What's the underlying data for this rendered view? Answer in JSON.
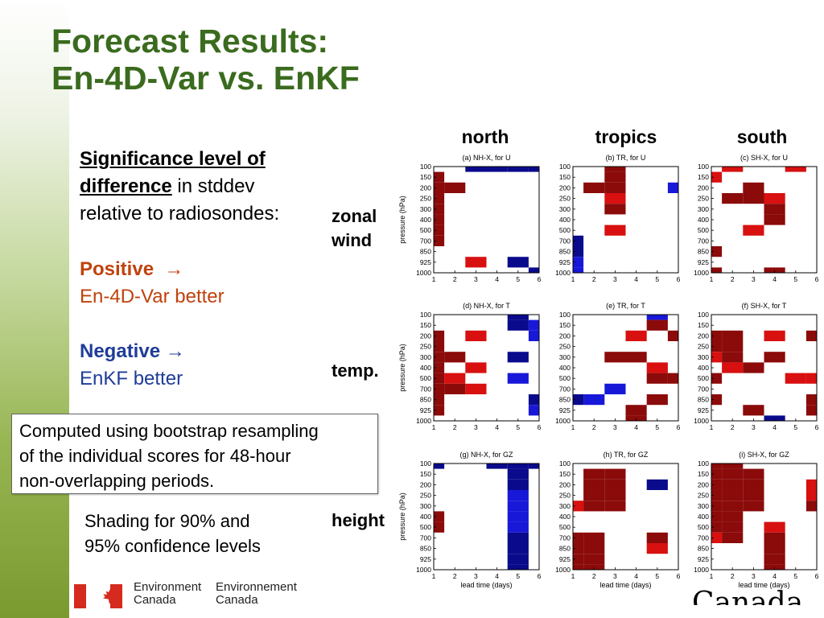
{
  "title": {
    "line1": "Forecast Results:",
    "line2": "En-4D-Var vs. EnKF"
  },
  "text": {
    "sig_heading_1": "Significance level of",
    "sig_heading_2": "difference",
    "sig_rest_1": " in stddev",
    "sig_rest_2": "relative to radiosondes:",
    "positive_label": "Positive",
    "positive_arrow": "→",
    "positive_desc": "En-4D-Var better",
    "negative_label": "Negative",
    "negative_arrow": "→",
    "negative_desc": "EnKF better",
    "note_line1": "Computed using bootstrap resampling",
    "note_line2": "of the individual scores for 48-hour",
    "note_line3": "non-overlapping periods.",
    "shading_line1": "Shading for 90% and",
    "shading_line2": "95% confidence levels"
  },
  "columns": [
    "north",
    "tropics",
    "south"
  ],
  "rows": [
    "zonal wind",
    "temp.",
    "height"
  ],
  "row_label_lines": [
    [
      "zonal",
      "wind"
    ],
    [
      "temp."
    ],
    [
      "height"
    ]
  ],
  "footer": {
    "dept_en_1": "Environment",
    "dept_en_2": "Canada",
    "dept_fr_1": "Environnement",
    "dept_fr_2": "Canada",
    "wordmark": "Canada"
  },
  "colors": {
    "pos95": "#8b0a0a",
    "pos90": "#d81010",
    "neg95": "#0a0a8c",
    "neg90": "#1818d8",
    "title": "#3a6b1e",
    "positive": "#c0420c",
    "negative": "#1f3c98"
  },
  "chart_data": {
    "type": "heatmap",
    "levels": [
      "100",
      "150",
      "200",
      "250",
      "300",
      "400",
      "500",
      "700",
      "850",
      "925",
      "1000"
    ],
    "lead_times": [
      "1",
      "2",
      "3",
      "4",
      "5",
      "6"
    ],
    "ylabel": "pressure (hPa)",
    "xlabel": "lead time (days)",
    "legend_codes": {
      "2": "positive 95%",
      "1": "positive 90%",
      "-1": "negative 90%",
      "-2": "negative 95%"
    },
    "panels": [
      {
        "title": "(a) NH-X, for U",
        "grid": [
          [
            0,
            0,
            -2,
            -2,
            -2,
            -2
          ],
          [
            2,
            0,
            0,
            0,
            0,
            0
          ],
          [
            2,
            2,
            0,
            0,
            0,
            0
          ],
          [
            2,
            0,
            0,
            0,
            0,
            0
          ],
          [
            2,
            0,
            0,
            0,
            0,
            0
          ],
          [
            2,
            0,
            0,
            0,
            0,
            0
          ],
          [
            2,
            0,
            0,
            0,
            0,
            0
          ],
          [
            2,
            0,
            0,
            0,
            0,
            0
          ],
          [
            0,
            0,
            0,
            0,
            0,
            0
          ],
          [
            0,
            0,
            1,
            0,
            -2,
            0
          ],
          [
            0,
            0,
            0,
            0,
            0,
            -2
          ]
        ]
      },
      {
        "title": "(b) TR, for U",
        "grid": [
          [
            0,
            0,
            2,
            0,
            0,
            0
          ],
          [
            0,
            0,
            2,
            0,
            0,
            0
          ],
          [
            0,
            2,
            2,
            0,
            0,
            -1
          ],
          [
            0,
            0,
            1,
            0,
            0,
            0
          ],
          [
            0,
            0,
            2,
            0,
            0,
            0
          ],
          [
            0,
            0,
            0,
            0,
            0,
            0
          ],
          [
            0,
            0,
            1,
            0,
            0,
            0
          ],
          [
            -2,
            0,
            0,
            0,
            0,
            0
          ],
          [
            -2,
            0,
            0,
            0,
            0,
            0
          ],
          [
            -1,
            0,
            0,
            0,
            0,
            0
          ],
          [
            -1,
            0,
            0,
            0,
            0,
            0
          ]
        ]
      },
      {
        "title": "(c) SH-X, for U",
        "grid": [
          [
            0,
            1,
            0,
            0,
            1,
            0
          ],
          [
            1,
            0,
            0,
            0,
            0,
            0
          ],
          [
            0,
            0,
            2,
            0,
            0,
            0
          ],
          [
            0,
            2,
            2,
            1,
            0,
            0
          ],
          [
            0,
            0,
            0,
            2,
            0,
            0
          ],
          [
            0,
            0,
            0,
            2,
            0,
            0
          ],
          [
            0,
            0,
            1,
            0,
            0,
            0
          ],
          [
            0,
            0,
            0,
            0,
            0,
            0
          ],
          [
            2,
            0,
            0,
            0,
            0,
            0
          ],
          [
            0,
            0,
            0,
            0,
            0,
            0
          ],
          [
            2,
            0,
            0,
            2,
            0,
            0
          ]
        ]
      },
      {
        "title": "(d) NH-X, for T",
        "grid": [
          [
            0,
            0,
            0,
            0,
            -2,
            0
          ],
          [
            0,
            0,
            0,
            0,
            -2,
            -1
          ],
          [
            2,
            0,
            1,
            0,
            0,
            -1
          ],
          [
            2,
            0,
            0,
            0,
            0,
            0
          ],
          [
            2,
            2,
            0,
            0,
            -2,
            0
          ],
          [
            2,
            0,
            1,
            0,
            0,
            0
          ],
          [
            2,
            1,
            0,
            0,
            -1,
            0
          ],
          [
            2,
            2,
            1,
            0,
            0,
            0
          ],
          [
            2,
            0,
            0,
            0,
            0,
            -2
          ],
          [
            2,
            0,
            0,
            0,
            0,
            -1
          ],
          [
            0,
            0,
            0,
            0,
            0,
            0
          ]
        ]
      },
      {
        "title": "(e) TR, for T",
        "grid": [
          [
            0,
            0,
            0,
            0,
            -1,
            0
          ],
          [
            0,
            0,
            0,
            0,
            2,
            0
          ],
          [
            0,
            0,
            0,
            1,
            0,
            2
          ],
          [
            0,
            0,
            0,
            0,
            0,
            0
          ],
          [
            0,
            0,
            2,
            2,
            0,
            0
          ],
          [
            0,
            0,
            0,
            0,
            1,
            0
          ],
          [
            0,
            0,
            0,
            0,
            2,
            2
          ],
          [
            0,
            0,
            -1,
            0,
            0,
            0
          ],
          [
            -2,
            -1,
            0,
            0,
            2,
            0
          ],
          [
            0,
            0,
            0,
            2,
            0,
            0
          ],
          [
            0,
            0,
            0,
            2,
            0,
            0
          ]
        ]
      },
      {
        "title": "(f) SH-X, for T",
        "grid": [
          [
            0,
            0,
            0,
            0,
            0,
            0
          ],
          [
            0,
            0,
            0,
            0,
            0,
            0
          ],
          [
            2,
            2,
            0,
            1,
            0,
            2
          ],
          [
            2,
            2,
            0,
            0,
            0,
            0
          ],
          [
            1,
            2,
            0,
            2,
            0,
            0
          ],
          [
            0,
            1,
            2,
            0,
            0,
            0
          ],
          [
            2,
            0,
            0,
            0,
            1,
            1
          ],
          [
            0,
            0,
            0,
            0,
            0,
            0
          ],
          [
            2,
            0,
            0,
            0,
            0,
            2
          ],
          [
            0,
            0,
            2,
            0,
            0,
            2
          ],
          [
            0,
            0,
            0,
            -2,
            0,
            0
          ]
        ]
      },
      {
        "title": "(g) NH-X, for GZ",
        "grid": [
          [
            -2,
            0,
            0,
            -2,
            -2,
            -2
          ],
          [
            0,
            0,
            0,
            0,
            -2,
            0
          ],
          [
            0,
            0,
            0,
            0,
            -2,
            0
          ],
          [
            0,
            0,
            0,
            0,
            -1,
            0
          ],
          [
            0,
            0,
            0,
            0,
            -1,
            0
          ],
          [
            2,
            0,
            0,
            0,
            -1,
            0
          ],
          [
            2,
            0,
            0,
            0,
            -1,
            0
          ],
          [
            0,
            0,
            0,
            0,
            -2,
            0
          ],
          [
            0,
            0,
            0,
            0,
            -2,
            0
          ],
          [
            0,
            0,
            0,
            0,
            -2,
            0
          ],
          [
            0,
            0,
            0,
            0,
            -2,
            0
          ]
        ]
      },
      {
        "title": "(h) TR, for GZ",
        "grid": [
          [
            0,
            0,
            0,
            0,
            0,
            0
          ],
          [
            0,
            2,
            2,
            0,
            0,
            0
          ],
          [
            0,
            2,
            2,
            0,
            -2,
            0
          ],
          [
            0,
            2,
            2,
            0,
            0,
            0
          ],
          [
            1,
            2,
            2,
            0,
            0,
            0
          ],
          [
            0,
            0,
            0,
            0,
            0,
            0
          ],
          [
            0,
            0,
            0,
            0,
            0,
            0
          ],
          [
            2,
            2,
            0,
            0,
            2,
            0
          ],
          [
            2,
            2,
            0,
            0,
            1,
            0
          ],
          [
            2,
            2,
            0,
            0,
            0,
            0
          ],
          [
            2,
            2,
            0,
            0,
            0,
            0
          ]
        ]
      },
      {
        "title": "(i) SH-X, for GZ",
        "grid": [
          [
            2,
            2,
            0,
            0,
            0,
            0
          ],
          [
            2,
            2,
            2,
            0,
            0,
            0
          ],
          [
            2,
            2,
            2,
            0,
            0,
            1
          ],
          [
            2,
            2,
            2,
            0,
            0,
            1
          ],
          [
            2,
            2,
            2,
            0,
            0,
            2
          ],
          [
            2,
            2,
            0,
            0,
            0,
            0
          ],
          [
            2,
            2,
            0,
            1,
            0,
            0
          ],
          [
            1,
            2,
            0,
            2,
            0,
            0
          ],
          [
            0,
            0,
            0,
            2,
            0,
            0
          ],
          [
            0,
            0,
            0,
            2,
            0,
            0
          ],
          [
            0,
            0,
            0,
            2,
            0,
            0
          ]
        ]
      }
    ]
  }
}
